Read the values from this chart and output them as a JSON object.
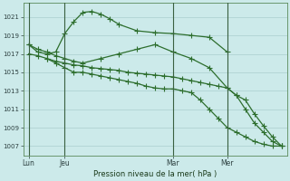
{
  "background_color": "#cceaea",
  "grid_color": "#aacece",
  "line_color": "#2d6e2d",
  "xlabel": "Pression niveau de la mer( hPa )",
  "ylim": [
    1006.0,
    1022.5
  ],
  "xlim": [
    -0.3,
    14.3
  ],
  "yticks": [
    1007,
    1009,
    1011,
    1013,
    1015,
    1017,
    1019,
    1021
  ],
  "xtick_positions": [
    0,
    2,
    8,
    11
  ],
  "xtick_labels": [
    "Lun",
    "Jeu",
    "Mar",
    "Mer"
  ],
  "line1_x": [
    0,
    0.5,
    1.0,
    1.5,
    2.0,
    2.5,
    3.0,
    3.5,
    4.0,
    4.5,
    5.0,
    6.0,
    7.0,
    8.0,
    9.0,
    10.0,
    11.0
  ],
  "line1_y": [
    1018.0,
    1017.2,
    1017.0,
    1017.2,
    1019.2,
    1020.5,
    1021.5,
    1021.6,
    1021.3,
    1020.8,
    1020.2,
    1019.5,
    1019.3,
    1019.2,
    1019.0,
    1018.8,
    1017.2
  ],
  "line2_x": [
    0,
    0.5,
    1.0,
    1.5,
    2.0,
    2.5,
    3.0,
    3.5,
    4.0,
    4.5,
    5.0,
    5.5,
    6.0,
    6.5,
    7.0,
    7.5,
    8.0,
    8.5,
    9.0,
    9.5,
    10.0,
    10.5,
    11.0,
    11.5,
    12.0,
    12.5,
    13.0,
    13.5,
    14.0
  ],
  "line2_y": [
    1017.0,
    1016.8,
    1016.5,
    1016.2,
    1016.0,
    1015.8,
    1015.7,
    1015.5,
    1015.4,
    1015.3,
    1015.2,
    1015.0,
    1014.9,
    1014.8,
    1014.7,
    1014.6,
    1014.5,
    1014.3,
    1014.1,
    1013.9,
    1013.7,
    1013.5,
    1013.3,
    1012.5,
    1011.0,
    1009.5,
    1008.5,
    1007.5,
    1007.0
  ],
  "line3_x": [
    0,
    0.5,
    1.0,
    1.5,
    2.0,
    2.5,
    3.0,
    4.0,
    5.0,
    6.0,
    7.0,
    8.0,
    9.0,
    10.0,
    11.0,
    11.5,
    12.0,
    12.5,
    13.0,
    13.5,
    14.0
  ],
  "line3_y": [
    1018.0,
    1017.5,
    1017.2,
    1016.8,
    1016.5,
    1016.2,
    1016.0,
    1016.5,
    1017.0,
    1017.5,
    1018.0,
    1017.2,
    1016.5,
    1015.5,
    1013.3,
    1012.5,
    1012.0,
    1010.5,
    1009.2,
    1008.0,
    1007.0
  ],
  "line4_x": [
    1.0,
    1.5,
    2.0,
    2.5,
    3.0,
    3.5,
    4.0,
    4.5,
    5.0,
    5.5,
    6.0,
    6.5,
    7.0,
    7.5,
    8.0,
    8.5,
    9.0,
    9.5,
    10.0,
    10.5,
    11.0,
    11.5,
    12.0,
    12.5,
    13.0,
    13.5,
    14.0
  ],
  "line4_y": [
    1016.5,
    1016.0,
    1015.5,
    1015.0,
    1015.0,
    1014.8,
    1014.6,
    1014.4,
    1014.2,
    1014.0,
    1013.8,
    1013.5,
    1013.3,
    1013.2,
    1013.2,
    1013.0,
    1012.8,
    1012.0,
    1011.0,
    1010.0,
    1009.0,
    1008.5,
    1008.0,
    1007.5,
    1007.2,
    1007.0,
    1007.0
  ]
}
